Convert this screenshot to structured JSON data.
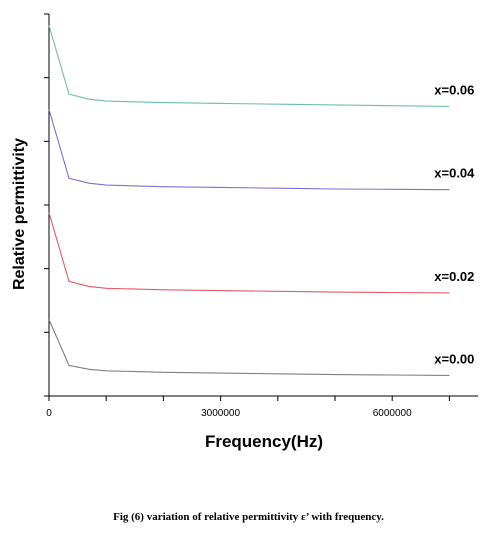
{
  "chart_data": {
    "type": "line",
    "title": "",
    "xlabel": "Frequency(Hz)",
    "ylabel": "Relative permittivity",
    "xlim": [
      0,
      7500000
    ],
    "x_ticks": [
      0,
      3000000,
      6000000
    ],
    "x_tick_labels": [
      "0",
      "3000000",
      "6000000"
    ],
    "grid": false,
    "legend": "inline-right",
    "series": [
      {
        "name": "x=0.06",
        "color": "#6fbfa8",
        "x": [
          0,
          350000,
          700000,
          1000000,
          2000000,
          3000000,
          4000000,
          5000000,
          6000000,
          7000000
        ],
        "y": [
          0.97,
          0.79,
          0.777,
          0.772,
          0.768,
          0.766,
          0.764,
          0.762,
          0.76,
          0.758
        ]
      },
      {
        "name": "x=0.04",
        "color": "#7b72d1",
        "x": [
          0,
          350000,
          700000,
          1000000,
          2000000,
          3000000,
          4000000,
          5000000,
          6000000,
          7000000
        ],
        "y": [
          0.75,
          0.57,
          0.557,
          0.552,
          0.548,
          0.546,
          0.544,
          0.542,
          0.541,
          0.54
        ]
      },
      {
        "name": "x=0.02",
        "color": "#e35b63",
        "x": [
          0,
          350000,
          700000,
          1000000,
          2000000,
          3000000,
          4000000,
          5000000,
          6000000,
          7000000
        ],
        "y": [
          0.48,
          0.3,
          0.287,
          0.282,
          0.278,
          0.276,
          0.274,
          0.272,
          0.271,
          0.27
        ]
      },
      {
        "name": "x=0.00",
        "color": "#7f7f7f",
        "x": [
          0,
          350000,
          700000,
          1000000,
          2000000,
          3000000,
          4000000,
          5000000,
          6000000,
          7000000
        ],
        "y": [
          0.2,
          0.08,
          0.07,
          0.066,
          0.062,
          0.06,
          0.058,
          0.056,
          0.055,
          0.054
        ]
      }
    ]
  },
  "caption": "Fig (6) variation  of relative permittivity   ε’ with  frequency."
}
